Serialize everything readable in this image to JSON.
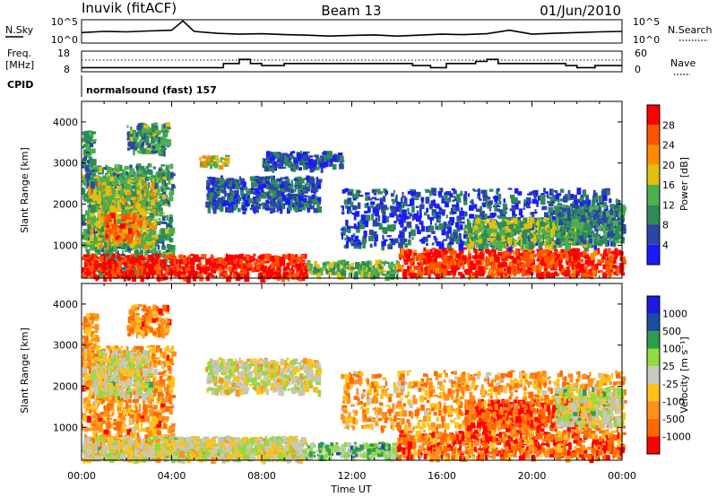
{
  "header": {
    "station": "Inuvik (fitACF)",
    "beam": "Beam 13",
    "date": "01/Jun/2010"
  },
  "top_panels": {
    "nsky_label": "N.Sky",
    "nsky_ticks": [
      "10^5",
      "10^0"
    ],
    "nsearch_label": "N.Search",
    "nsearch_ticks": [
      "10^5",
      "10^0"
    ],
    "freq_label": "Freq.",
    "freq_unit": "[MHz]",
    "freq_ticks": [
      "18",
      "8"
    ],
    "nave_label": "Nave",
    "nave_ticks": [
      "60",
      "0"
    ],
    "cpid_label": "CPID",
    "cpid_value": "normalsound (fast) 157"
  },
  "colors": {
    "power_scale": [
      "#1a1aff",
      "#2d44a8",
      "#2e8b57",
      "#4caf50",
      "#e0c010",
      "#ff8c00",
      "#ff5500",
      "#ff0000"
    ],
    "velocity_scale": [
      "#ff0000",
      "#ff6a00",
      "#ff8f1f",
      "#ffc21a",
      "#c8c8c0",
      "#8edc3e",
      "#2e9c4e",
      "#1a4fa0",
      "#1a1ae0"
    ],
    "velocity_ground": "#c0c0b8",
    "trace": "#000000"
  },
  "chart_data": [
    {
      "type": "line",
      "panel": "N.Sky / N.Search",
      "ylabel_left": "N.Sky",
      "ylabel_right": "N.Search",
      "x_range_hours": [
        0,
        24
      ],
      "ylim": [
        "10^0",
        "10^5"
      ],
      "series": [
        {
          "name": "N.Sky",
          "x": [
            0,
            1,
            2,
            3,
            4,
            4.5,
            5,
            6,
            7,
            8,
            9,
            10,
            11,
            12,
            13,
            14,
            15,
            16,
            17,
            18,
            19,
            20,
            21,
            22,
            23,
            24
          ],
          "values": [
            0.45,
            0.5,
            0.48,
            0.52,
            0.55,
            0.95,
            0.5,
            0.42,
            0.38,
            0.4,
            0.36,
            0.34,
            0.3,
            0.33,
            0.35,
            0.3,
            0.34,
            0.38,
            0.36,
            0.4,
            0.55,
            0.38,
            0.42,
            0.45,
            0.48,
            0.5
          ]
        }
      ]
    },
    {
      "type": "line",
      "panel": "Freq. / Nave",
      "ylabel_left": "Freq. [MHz]",
      "ylabel_right": "Nave",
      "x_range_hours": [
        0,
        24
      ],
      "ylim_left": [
        8,
        18
      ],
      "ylim_right": [
        0,
        60
      ],
      "series": [
        {
          "name": "Freq.",
          "x": [
            0,
            6.3,
            6.3,
            7.0,
            7.0,
            7.5,
            7.5,
            8.0,
            8.0,
            9.0,
            9.0,
            14.7,
            14.7,
            15.5,
            15.5,
            16.2,
            16.2,
            17.5,
            17.5,
            18.0,
            18.0,
            18.5,
            18.5,
            21.5,
            21.5,
            22.0,
            22.0,
            22.8,
            22.8,
            24
          ],
          "values": [
            10,
            10,
            12,
            12,
            14,
            14,
            12,
            12,
            11,
            11,
            12,
            12,
            11,
            11,
            10,
            10,
            12,
            12,
            13,
            13,
            14,
            14,
            12,
            12,
            11,
            11,
            10,
            10,
            11,
            11
          ]
        },
        {
          "name": "Nave",
          "x": [
            0,
            24
          ],
          "values": [
            28,
            28
          ]
        }
      ]
    },
    {
      "type": "heatmap",
      "panel": "Power",
      "x_range_hours": [
        0,
        24
      ],
      "xticks": [
        "00:00",
        "04:00",
        "08:00",
        "12:00",
        "16:00",
        "20:00",
        "00:00"
      ],
      "ylabel": "Slant Range [km]",
      "ylim": [
        200,
        4500
      ],
      "yticks": [
        1000,
        2000,
        3000,
        4000
      ],
      "colorbar_label": "Power [dB]",
      "colorbar_ticks": [
        4,
        8,
        12,
        16,
        20,
        24,
        28
      ],
      "colorbar_range": [
        0,
        32
      ],
      "regions": [
        {
          "t0": 0.0,
          "t1": 4.0,
          "r0": 300,
          "r1": 3000,
          "level": 0.35
        },
        {
          "t0": 0.2,
          "t1": 3.2,
          "r0": 1000,
          "r1": 2700,
          "level": 0.5
        },
        {
          "t0": 1.0,
          "t1": 2.5,
          "r0": 1200,
          "r1": 1800,
          "level": 0.75
        },
        {
          "t0": 0.0,
          "t1": 0.5,
          "r0": 2500,
          "r1": 3800,
          "level": 0.3
        },
        {
          "t0": 2.0,
          "t1": 3.8,
          "r0": 3300,
          "r1": 4000,
          "level": 0.35
        },
        {
          "t0": 0.0,
          "t1": 10.0,
          "r0": 250,
          "r1": 800,
          "level": 0.93
        },
        {
          "t0": 10.0,
          "t1": 14.0,
          "r0": 300,
          "r1": 650,
          "level": 0.45
        },
        {
          "t0": 14.0,
          "t1": 24.0,
          "r0": 300,
          "r1": 950,
          "level": 0.88
        },
        {
          "t0": 11.5,
          "t1": 24.0,
          "r0": 1000,
          "r1": 2400,
          "level": 0.18
        },
        {
          "t0": 5.5,
          "t1": 10.5,
          "r0": 1900,
          "r1": 2700,
          "level": 0.2
        },
        {
          "t0": 5.2,
          "t1": 6.4,
          "r0": 2950,
          "r1": 3200,
          "level": 0.55
        },
        {
          "t0": 8.0,
          "t1": 11.5,
          "r0": 2900,
          "r1": 3300,
          "level": 0.2
        },
        {
          "t0": 17.0,
          "t1": 22.5,
          "r0": 1000,
          "r1": 1700,
          "level": 0.45
        },
        {
          "t0": 21.0,
          "t1": 24.0,
          "r0": 1100,
          "r1": 2000,
          "level": 0.3
        }
      ]
    },
    {
      "type": "heatmap",
      "panel": "Velocity",
      "x_range_hours": [
        0,
        24
      ],
      "xticks": [
        "00:00",
        "04:00",
        "08:00",
        "12:00",
        "16:00",
        "20:00",
        "00:00"
      ],
      "xlabel": "Time UT",
      "ylabel": "Slant Range [km]",
      "ylim": [
        200,
        4500
      ],
      "yticks": [
        1000,
        2000,
        3000,
        4000
      ],
      "colorbar_label": "Velocity [m s⁻¹]",
      "colorbar_ticks": [
        "1000",
        "500",
        "100",
        "25",
        "-25",
        "-100",
        "-500",
        "-1000"
      ],
      "regions": [
        {
          "t0": 0.0,
          "t1": 4.0,
          "r0": 300,
          "r1": 3000,
          "level": 0.28
        },
        {
          "t0": 0.3,
          "t1": 3.0,
          "r0": 1800,
          "r1": 2900,
          "level": 0.5
        },
        {
          "t0": 0.0,
          "t1": 0.6,
          "r0": 2500,
          "r1": 3800,
          "level": 0.3
        },
        {
          "t0": 2.0,
          "t1": 3.8,
          "r0": 3300,
          "r1": 4000,
          "level": 0.25
        },
        {
          "t0": 0.0,
          "t1": 10.0,
          "r0": 250,
          "r1": 800,
          "level": 0.5
        },
        {
          "t0": 4.0,
          "t1": 9.5,
          "r0": 280,
          "r1": 780,
          "level": 0.48
        },
        {
          "t0": 10.0,
          "t1": 14.0,
          "r0": 300,
          "r1": 650,
          "level": 0.62
        },
        {
          "t0": 14.0,
          "t1": 24.0,
          "r0": 300,
          "r1": 950,
          "level": 0.2
        },
        {
          "t0": 11.5,
          "t1": 24.0,
          "r0": 1000,
          "r1": 2400,
          "level": 0.3
        },
        {
          "t0": 5.5,
          "t1": 10.5,
          "r0": 1900,
          "r1": 2700,
          "level": 0.48
        },
        {
          "t0": 17.0,
          "t1": 22.5,
          "r0": 1000,
          "r1": 1700,
          "level": 0.15
        },
        {
          "t0": 21.0,
          "t1": 24.0,
          "r0": 1100,
          "r1": 2000,
          "level": 0.5
        }
      ]
    }
  ]
}
